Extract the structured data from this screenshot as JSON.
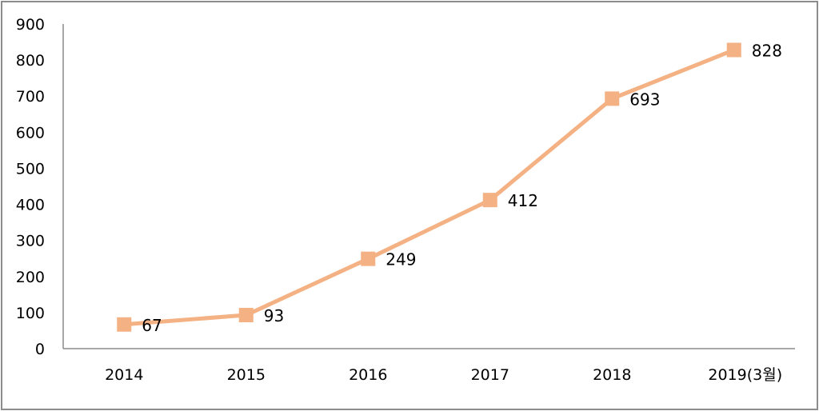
{
  "chart_data": {
    "type": "line",
    "title": "",
    "xlabel": "",
    "ylabel": "",
    "categories": [
      "2014",
      "2015",
      "2016",
      "2017",
      "2018",
      "2019(3월)"
    ],
    "series": [
      {
        "values": [
          67,
          93,
          249,
          412,
          693,
          828
        ],
        "color": "#f4b183"
      }
    ],
    "ylim": [
      0,
      900
    ],
    "yticks": [
      0,
      100,
      200,
      300,
      400,
      500,
      600,
      700,
      800,
      900
    ],
    "grid": false,
    "legend": "none",
    "marker": "square",
    "data_labels": true
  }
}
